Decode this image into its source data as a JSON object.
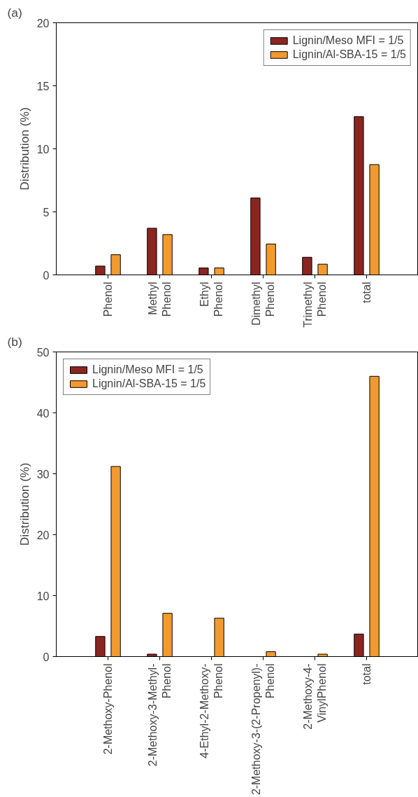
{
  "chart_data": [
    {
      "type": "bar",
      "title": "(a)",
      "ylabel": "Distribution (%)",
      "categories": [
        "Phenol",
        "Methyl\nPhenol",
        "Ethyl\nPhenol",
        "Dimethyl\nPhenol",
        "Trimethyl\nPhenol",
        "total"
      ],
      "series": [
        {
          "name": "Lignin/Meso MFI = 1/5",
          "color": "#8b2520",
          "values": [
            0.7,
            3.7,
            0.55,
            6.1,
            1.4,
            12.55
          ]
        },
        {
          "name": "Lignin/Al-SBA-15 = 1/5",
          "color": "#f39a2e",
          "values": [
            1.6,
            3.2,
            0.55,
            2.45,
            0.85,
            8.75
          ]
        }
      ],
      "ylim": [
        0,
        20
      ],
      "yticks": [
        0,
        5,
        10,
        15,
        20
      ],
      "grid": false,
      "legend": "top right"
    },
    {
      "type": "bar",
      "title": "(b)",
      "ylabel": "Distribution (%)",
      "categories": [
        "2-Methoxy-Phenol",
        "2-Methoxy-3-Methyl-\nPhenol",
        "4-Ethyl-2-Methoxy-\nPhenol",
        "2-Methoxy-3-(2-Propenyl)-\nPhenol",
        "2-Methoxy-4-\nVinylPhenol",
        "total"
      ],
      "series": [
        {
          "name": "Lignin/Meso MFI = 1/5",
          "color": "#8b2520",
          "values": [
            3.3,
            0.4,
            null,
            null,
            null,
            3.7
          ]
        },
        {
          "name": "Lignin/Al-SBA-15 = 1/5",
          "color": "#f39a2e",
          "values": [
            31.2,
            7.1,
            6.3,
            0.8,
            0.4,
            46.0
          ]
        }
      ],
      "ylim": [
        0,
        50
      ],
      "yticks": [
        0,
        10,
        20,
        30,
        40,
        50
      ],
      "grid": false,
      "legend": "top left"
    }
  ]
}
